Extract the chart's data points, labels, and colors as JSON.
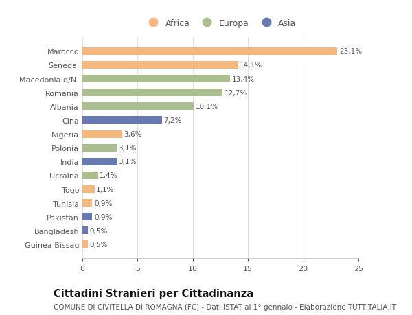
{
  "countries": [
    "Guinea Bissau",
    "Bangladesh",
    "Pakistan",
    "Tunisia",
    "Togo",
    "Ucraina",
    "India",
    "Polonia",
    "Nigeria",
    "Cina",
    "Albania",
    "Romania",
    "Macedonia d/N.",
    "Senegal",
    "Marocco"
  ],
  "values": [
    0.5,
    0.5,
    0.9,
    0.9,
    1.1,
    1.4,
    3.1,
    3.1,
    3.6,
    7.2,
    10.1,
    12.7,
    13.4,
    14.1,
    23.1
  ],
  "labels": [
    "0,5%",
    "0,5%",
    "0,9%",
    "0,9%",
    "1,1%",
    "1,4%",
    "3,1%",
    "3,1%",
    "3,6%",
    "7,2%",
    "10,1%",
    "12,7%",
    "13,4%",
    "14,1%",
    "23,1%"
  ],
  "continents": [
    "Africa",
    "Asia",
    "Asia",
    "Africa",
    "Africa",
    "Europa",
    "Asia",
    "Europa",
    "Africa",
    "Asia",
    "Europa",
    "Europa",
    "Europa",
    "Africa",
    "Africa"
  ],
  "colors": {
    "Africa": "#F5B97F",
    "Europa": "#ABBE8F",
    "Asia": "#6878B0"
  },
  "xlim": [
    0,
    25
  ],
  "xticks": [
    0,
    5,
    10,
    15,
    20,
    25
  ],
  "background_color": "#ffffff",
  "plot_bg_color": "#ffffff",
  "title": "Cittadini Stranieri per Cittadinanza",
  "subtitle": "COMUNE DI CIVITELLA DI ROMAGNA (FC) - Dati ISTAT al 1° gennaio - Elaborazione TUTTITALIA.IT",
  "title_fontsize": 10.5,
  "subtitle_fontsize": 7.5,
  "bar_height": 0.55,
  "label_fontsize": 7.5,
  "tick_fontsize": 8,
  "legend_fontsize": 9,
  "grid_color": "#e0e0e0",
  "spine_color": "#cccccc",
  "text_color": "#555555",
  "title_color": "#111111"
}
